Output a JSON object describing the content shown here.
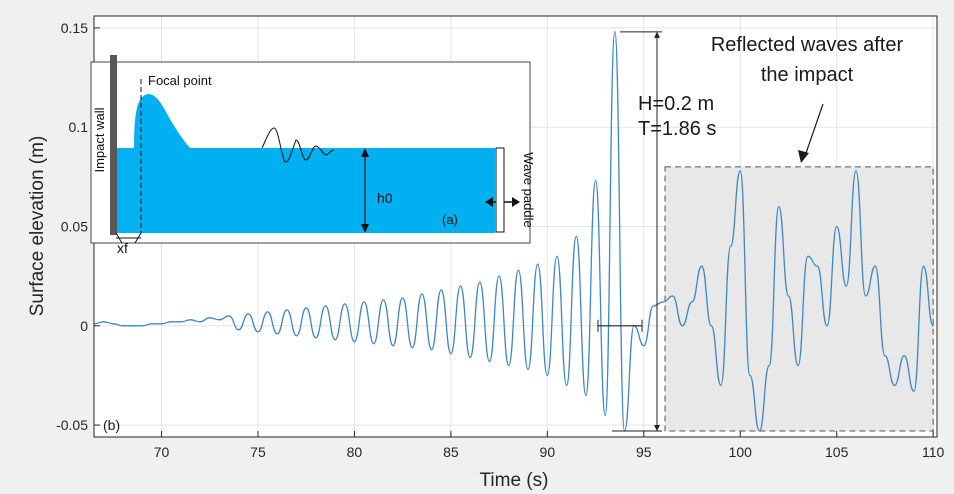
{
  "chart_data": {
    "type": "line",
    "x": [
      66.5,
      67.0,
      67.5,
      68.0,
      68.5,
      69.0,
      69.5,
      70.0,
      70.5,
      71.0,
      71.5,
      72.0,
      72.5,
      73.0,
      73.5,
      74.0,
      74.5,
      75.0,
      75.5,
      76.0,
      76.5,
      77.0,
      77.5,
      78.0,
      78.5,
      79.0,
      79.5,
      80.0,
      80.5,
      81.0,
      81.5,
      82.0,
      82.5,
      83.0,
      83.5,
      84.0,
      84.5,
      85.0,
      85.5,
      86.0,
      86.5,
      87.0,
      87.5,
      88.0,
      88.5,
      89.0,
      89.5,
      90.0,
      90.5,
      91.0,
      91.5,
      92.0,
      92.5,
      93.0,
      93.5,
      94.0,
      94.5,
      95.0,
      95.5,
      96.0,
      96.5,
      97.0,
      97.5,
      98.0,
      98.5,
      99.0,
      99.5,
      100.0,
      100.5,
      101.0,
      101.5,
      102.0,
      102.5,
      103.0,
      103.5,
      104.0,
      104.5,
      105.0,
      105.5,
      106.0,
      106.5,
      107.0,
      107.5,
      108.0,
      108.5,
      109.0,
      109.5,
      110.0
    ],
    "series": [
      {
        "values": [
          0.001,
          0.002,
          0.001,
          0.0,
          0.0,
          0.0,
          0.001,
          0.001,
          0.002,
          0.002,
          0.003,
          0.002,
          0.004,
          0.003,
          0.005,
          -0.002,
          0.006,
          -0.003,
          0.007,
          -0.004,
          0.008,
          -0.005,
          0.009,
          -0.006,
          0.01,
          -0.007,
          0.011,
          -0.008,
          0.012,
          -0.009,
          0.013,
          -0.01,
          0.014,
          -0.011,
          0.016,
          -0.012,
          0.018,
          -0.014,
          0.02,
          -0.016,
          0.022,
          -0.018,
          0.025,
          -0.02,
          0.028,
          -0.022,
          0.031,
          -0.025,
          0.035,
          -0.03,
          0.045,
          -0.035,
          0.073,
          -0.045,
          0.148,
          -0.053,
          0.0,
          -0.01,
          0.01,
          0.012,
          0.015,
          0.0,
          0.012,
          0.03,
          0.0,
          -0.03,
          0.04,
          0.078,
          -0.025,
          -0.053,
          -0.02,
          0.06,
          0.015,
          -0.02,
          0.035,
          0.03,
          0.0,
          0.05,
          0.02,
          0.078,
          0.015,
          0.03,
          -0.015,
          -0.03,
          -0.015,
          -0.033,
          0.03,
          0.0
        ]
      }
    ],
    "xlim": [
      66.5,
      110.2
    ],
    "ylim": [
      -0.056,
      0.156
    ],
    "xticks": [
      70,
      75,
      80,
      85,
      90,
      95,
      100,
      105,
      110
    ],
    "yticks": [
      -0.05,
      0,
      0.05,
      0.1,
      0.15
    ],
    "xtick_labels": [
      "70",
      "75",
      "80",
      "85",
      "90",
      "95",
      "100",
      "105",
      "110"
    ],
    "ytick_labels": [
      "-0.05",
      "0",
      "0.05",
      "0.1",
      "0.15"
    ],
    "xlabel": "Time (s)",
    "ylabel": "Surface elevation (m)",
    "grid": true,
    "line_color": "#3f88c5",
    "panel_label": "(b)"
  },
  "annotations": {
    "height_label": "H=0.2 m",
    "period_label": "T=1.86 s",
    "reflected_line1": "Reflected waves after",
    "reflected_line2": "the impact"
  },
  "inset": {
    "focal_point_label": "Focal point",
    "impact_wall_label": "Impact wall",
    "wave_paddle_label": "Wave paddle",
    "depth_label": "h0",
    "xf_label": "xf",
    "panel_label": "(a)",
    "water_color": "#00b0f0"
  }
}
